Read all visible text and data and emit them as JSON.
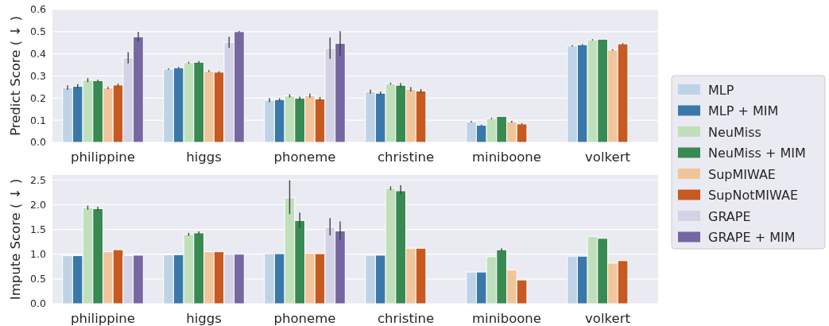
{
  "chart_data": [
    {
      "type": "bar",
      "ylabel": "Predict Score ( ↓ )",
      "categories": [
        "philippine",
        "higgs",
        "phoneme",
        "christine",
        "miniboone",
        "volkert"
      ],
      "ylim": [
        0,
        0.6
      ],
      "yticks": [
        {
          "value": 0,
          "label": "0.0"
        },
        0.1,
        0.2,
        0.3,
        0.4,
        0.5,
        0.6
      ],
      "grid": "y",
      "legend": "right",
      "series": [
        {
          "name": "MLP",
          "color": "#bed4e6",
          "values": [
            0.247,
            0.331,
            0.19,
            0.229,
            0.093,
            0.436
          ],
          "errors": [
            0.01,
            0.003,
            0.009,
            0.009,
            0.003,
            0.003
          ]
        },
        {
          "name": "MLP + MIM",
          "color": "#3a78aa",
          "values": [
            0.253,
            0.337,
            0.193,
            0.222,
            0.077,
            0.441
          ],
          "errors": [
            0.01,
            0.003,
            0.006,
            0.007,
            0.003,
            0.003
          ]
        },
        {
          "name": "NeuMiss",
          "color": "#bfe0bb",
          "values": [
            0.281,
            0.36,
            0.21,
            0.265,
            0.108,
            0.463
          ],
          "errors": [
            0.009,
            0.004,
            0.007,
            0.004,
            0.003,
            0.003
          ]
        },
        {
          "name": "NeuMiss + MIM",
          "color": "#388a52",
          "values": [
            0.279,
            0.362,
            0.199,
            0.258,
            0.117,
            0.466
          ],
          "errors": [
            0.004,
            0.005,
            0.008,
            0.01,
            null,
            null
          ]
        },
        {
          "name": "SupMIWAE",
          "color": "#f1c59c",
          "values": [
            0.246,
            0.322,
            0.211,
            0.24,
            0.093,
            0.417
          ],
          "errors": [
            0.005,
            0.004,
            0.009,
            0.01,
            0.004,
            0.003
          ]
        },
        {
          "name": "SupNotMIWAE",
          "color": "#c65a20",
          "values": [
            0.259,
            0.317,
            0.196,
            0.232,
            0.083,
            0.445
          ],
          "errors": [
            0.006,
            0.004,
            0.008,
            0.009,
            0.003,
            0.003
          ]
        },
        {
          "name": "GRAPE",
          "color": "#d4d3e6",
          "values": [
            0.382,
            0.452,
            0.425,
            null,
            null,
            null
          ],
          "errors": [
            0.025,
            0.025,
            0.048,
            null,
            null,
            null
          ]
        },
        {
          "name": "GRAPE + MIM",
          "color": "#7567a1",
          "values": [
            0.477,
            0.5,
            0.447,
            null,
            null,
            null
          ],
          "errors": [
            0.022,
            0.003,
            0.055,
            null,
            null,
            null
          ]
        }
      ]
    },
    {
      "type": "bar",
      "ylabel": "Impute Score ( ↓ )",
      "categories": [
        "philippine",
        "higgs",
        "phoneme",
        "christine",
        "miniboone",
        "volkert"
      ],
      "ylim": [
        0,
        2.6
      ],
      "yticks": [
        {
          "value": 0,
          "label": "0.0"
        },
        {
          "value": 0.5,
          "label": "0.5"
        },
        {
          "value": 1,
          "label": "1.0"
        },
        {
          "value": 1.5,
          "label": "1.5"
        },
        {
          "value": 2,
          "label": "2.0"
        },
        {
          "value": 2.5,
          "label": "2.5"
        }
      ],
      "grid": "y",
      "series": [
        {
          "color": "#bed4e6",
          "values": [
            0.97,
            0.99,
            1.01,
            0.98,
            0.64,
            0.96
          ]
        },
        {
          "color": "#3a78aa",
          "values": [
            0.97,
            0.99,
            1.01,
            0.98,
            0.64,
            0.96
          ]
        },
        {
          "color": "#bfe0bb",
          "values": [
            1.94,
            1.4,
            2.14,
            2.33,
            0.95,
            1.36
          ],
          "errors": [
            0.04,
            0.03,
            [
              1.81,
              2.49
            ],
            0.04,
            null,
            null
          ]
        },
        {
          "color": "#388a52",
          "values": [
            1.92,
            1.43,
            1.68,
            2.28,
            1.09,
            1.32
          ],
          "errors": [
            0.04,
            0.03,
            [
              1.53,
              1.84
            ],
            [
              2.21,
              2.39
            ],
            0.03,
            null
          ]
        },
        {
          "color": "#f1c59c",
          "values": [
            1.05,
            1.05,
            1.02,
            1.12,
            0.68,
            0.82
          ]
        },
        {
          "color": "#c65a20",
          "values": [
            1.09,
            1.05,
            1.01,
            1.12,
            0.48,
            0.87
          ]
        },
        {
          "color": "#d4d3e6",
          "values": [
            0.97,
            1.0,
            1.55,
            null,
            null,
            null
          ],
          "errors": [
            null,
            null,
            [
              1.38,
              1.73
            ],
            null,
            null,
            null
          ]
        },
        {
          "color": "#7567a1",
          "values": [
            0.98,
            1.0,
            1.47,
            null,
            null,
            null
          ],
          "errors": [
            null,
            null,
            [
              1.28,
              1.66
            ],
            null,
            null,
            null
          ]
        }
      ]
    }
  ]
}
